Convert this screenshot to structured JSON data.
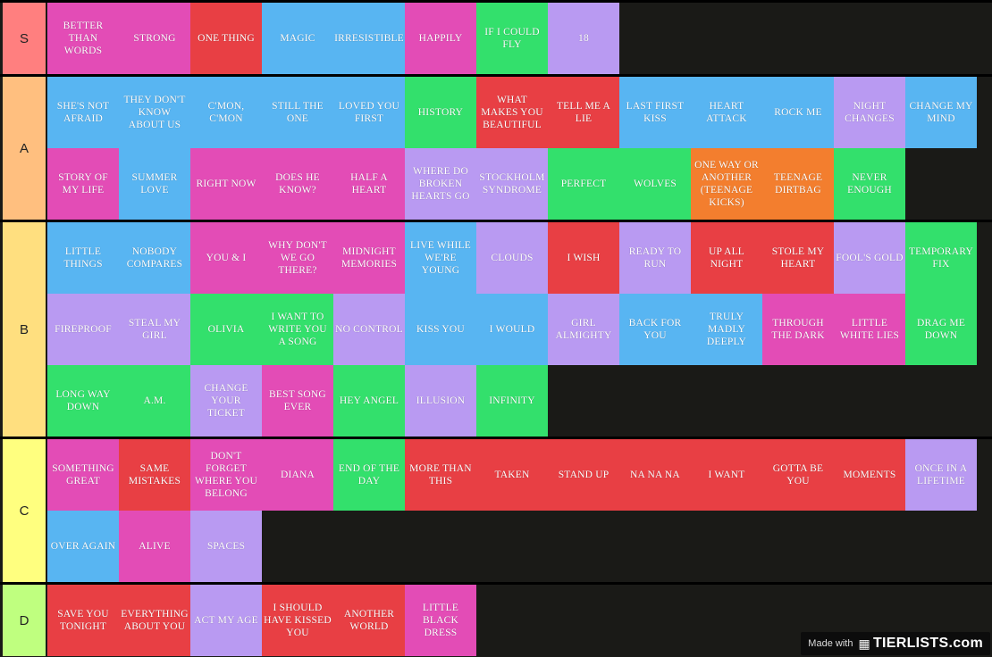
{
  "colors": {
    "background": "#1a1a17",
    "blue": "#58b5f2",
    "pink": "#e34cb6",
    "red": "#e83f44",
    "green": "#33e06c",
    "purple": "#b99af2",
    "orange": "#f37e2e"
  },
  "tiers": [
    {
      "label": "S",
      "color": "#ff7f7f",
      "items": [
        {
          "text": "BETTER THAN WORDS",
          "color": "pink"
        },
        {
          "text": "STRONG",
          "color": "pink"
        },
        {
          "text": "ONE THING",
          "color": "red"
        },
        {
          "text": "MAGIC",
          "color": "blue"
        },
        {
          "text": "IRRESISTIBLE",
          "color": "blue"
        },
        {
          "text": "HAPPILY",
          "color": "pink"
        },
        {
          "text": "IF I COULD FLY",
          "color": "green"
        },
        {
          "text": "18",
          "color": "purple"
        }
      ]
    },
    {
      "label": "A",
      "color": "#ffbf7f",
      "items": [
        {
          "text": "SHE'S NOT AFRAID",
          "color": "blue"
        },
        {
          "text": "THEY DON'T KNOW ABOUT US",
          "color": "blue"
        },
        {
          "text": "C'MON, C'MON",
          "color": "blue"
        },
        {
          "text": "STILL THE ONE",
          "color": "blue"
        },
        {
          "text": "LOVED YOU FIRST",
          "color": "blue"
        },
        {
          "text": "HISTORY",
          "color": "green"
        },
        {
          "text": "WHAT MAKES YOU BEAUTIFUL",
          "color": "red"
        },
        {
          "text": "TELL ME A LIE",
          "color": "red"
        },
        {
          "text": "LAST FIRST KISS",
          "color": "blue"
        },
        {
          "text": "HEART ATTACK",
          "color": "blue"
        },
        {
          "text": "ROCK ME",
          "color": "blue"
        },
        {
          "text": "NIGHT CHANGES",
          "color": "purple"
        },
        {
          "text": "CHANGE MY MIND",
          "color": "blue"
        },
        {
          "text": "STORY OF MY LIFE",
          "color": "pink"
        },
        {
          "text": "SUMMER LOVE",
          "color": "blue"
        },
        {
          "text": "RIGHT NOW",
          "color": "pink"
        },
        {
          "text": "DOES HE KNOW?",
          "color": "pink"
        },
        {
          "text": "HALF A HEART",
          "color": "pink"
        },
        {
          "text": "WHERE DO BROKEN HEARTS GO",
          "color": "purple"
        },
        {
          "text": "STOCKHOLM SYNDROME",
          "color": "purple"
        },
        {
          "text": "PERFECT",
          "color": "green"
        },
        {
          "text": "WOLVES",
          "color": "green"
        },
        {
          "text": "ONE WAY OR ANOTHER (TEENAGE KICKS)",
          "color": "orange"
        },
        {
          "text": "TEENAGE DIRTBAG",
          "color": "orange"
        },
        {
          "text": "NEVER ENOUGH",
          "color": "green"
        }
      ]
    },
    {
      "label": "B",
      "color": "#ffdf7f",
      "items": [
        {
          "text": "LITTLE THINGS",
          "color": "blue"
        },
        {
          "text": "NOBODY COMPARES",
          "color": "blue"
        },
        {
          "text": "YOU & I",
          "color": "pink"
        },
        {
          "text": "WHY DON'T WE GO THERE?",
          "color": "pink"
        },
        {
          "text": "MIDNIGHT MEMORIES",
          "color": "pink"
        },
        {
          "text": "LIVE WHILE WE'RE YOUNG",
          "color": "blue"
        },
        {
          "text": "CLOUDS",
          "color": "purple"
        },
        {
          "text": "I WISH",
          "color": "red"
        },
        {
          "text": "READY TO RUN",
          "color": "purple"
        },
        {
          "text": "UP ALL NIGHT",
          "color": "red"
        },
        {
          "text": "STOLE MY HEART",
          "color": "red"
        },
        {
          "text": "FOOL'S GOLD",
          "color": "purple"
        },
        {
          "text": "TEMPORARY FIX",
          "color": "green"
        },
        {
          "text": "FIREPROOF",
          "color": "purple"
        },
        {
          "text": "STEAL MY GIRL",
          "color": "purple"
        },
        {
          "text": "OLIVIA",
          "color": "green"
        },
        {
          "text": "I WANT TO WRITE YOU A SONG",
          "color": "green"
        },
        {
          "text": "NO CONTROL",
          "color": "purple"
        },
        {
          "text": "KISS YOU",
          "color": "blue"
        },
        {
          "text": "I WOULD",
          "color": "blue"
        },
        {
          "text": "GIRL ALMIGHTY",
          "color": "purple"
        },
        {
          "text": "BACK FOR YOU",
          "color": "blue"
        },
        {
          "text": "TRULY MADLY DEEPLY",
          "color": "blue"
        },
        {
          "text": "THROUGH THE DARK",
          "color": "pink"
        },
        {
          "text": "LITTLE WHITE LIES",
          "color": "pink"
        },
        {
          "text": "DRAG ME DOWN",
          "color": "green"
        },
        {
          "text": "LONG WAY DOWN",
          "color": "green"
        },
        {
          "text": "A.M.",
          "color": "green"
        },
        {
          "text": "CHANGE YOUR TICKET",
          "color": "purple"
        },
        {
          "text": "BEST SONG EVER",
          "color": "pink"
        },
        {
          "text": "HEY ANGEL",
          "color": "green"
        },
        {
          "text": "ILLUSION",
          "color": "purple"
        },
        {
          "text": "INFINITY",
          "color": "green"
        }
      ]
    },
    {
      "label": "C",
      "color": "#ffff7f",
      "items": [
        {
          "text": "SOMETHING GREAT",
          "color": "pink"
        },
        {
          "text": "SAME MISTAKES",
          "color": "red"
        },
        {
          "text": "DON'T FORGET WHERE YOU BELONG",
          "color": "pink"
        },
        {
          "text": "DIANA",
          "color": "pink"
        },
        {
          "text": "END OF THE DAY",
          "color": "green"
        },
        {
          "text": "MORE THAN THIS",
          "color": "red"
        },
        {
          "text": "TAKEN",
          "color": "red"
        },
        {
          "text": "STAND UP",
          "color": "red"
        },
        {
          "text": "NA NA NA",
          "color": "red"
        },
        {
          "text": "I WANT",
          "color": "red"
        },
        {
          "text": "GOTTA BE YOU",
          "color": "red"
        },
        {
          "text": "MOMENTS",
          "color": "red"
        },
        {
          "text": "ONCE IN A LIFETIME",
          "color": "purple"
        },
        {
          "text": "OVER AGAIN",
          "color": "blue"
        },
        {
          "text": "ALIVE",
          "color": "pink"
        },
        {
          "text": "SPACES",
          "color": "purple"
        }
      ]
    },
    {
      "label": "D",
      "color": "#bfff7f",
      "items": [
        {
          "text": "SAVE YOU TONIGHT",
          "color": "red"
        },
        {
          "text": "EVERYTHING ABOUT YOU",
          "color": "red"
        },
        {
          "text": "ACT MY AGE",
          "color": "purple"
        },
        {
          "text": "I SHOULD HAVE KISSED YOU",
          "color": "red"
        },
        {
          "text": "ANOTHER WORLD",
          "color": "red"
        },
        {
          "text": "LITTLE BLACK DRESS",
          "color": "pink"
        }
      ]
    }
  ],
  "watermark": {
    "made_with": "Made with",
    "brand": "TIERLISTS.com",
    "icon": "tierlists-logo-icon"
  }
}
